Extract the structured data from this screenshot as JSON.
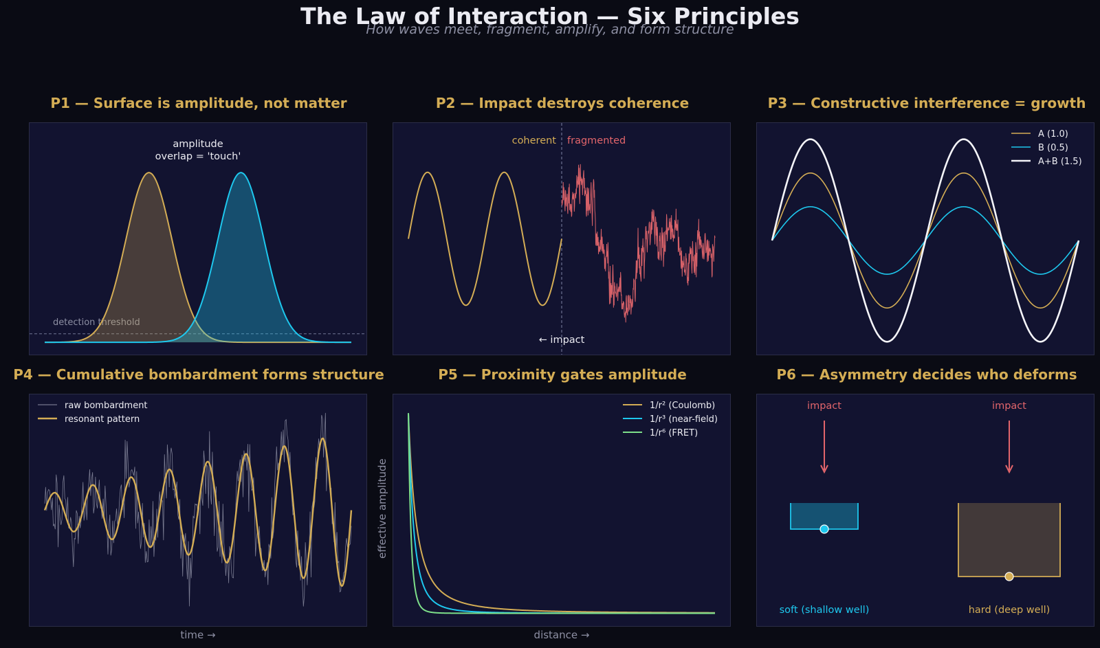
{
  "figure": {
    "title": "The Law of Interaction — Six Principles",
    "subtitle": "How waves meet, fragment, amplify, and form structure"
  },
  "colors": {
    "background": "#0a0b14",
    "panel": "#121330",
    "gold": "#d4ad55",
    "cyan": "#1ec8ee",
    "red": "#e2656b",
    "green": "#7ee08a",
    "white": "#f4f4f8",
    "gray": "#8d8fa3"
  },
  "chart_data": [
    {
      "id": "p1",
      "type": "area",
      "title": "P1 — Surface is amplitude, not matter",
      "x_range": [
        0,
        10
      ],
      "ylim": [
        -0.04,
        1.26
      ],
      "series": [
        {
          "shape": "gaussian",
          "center": 3.4,
          "sigma": 0.75,
          "amplitude": 1.0,
          "color": "#d4ad55"
        },
        {
          "shape": "gaussian",
          "center": 6.4,
          "sigma": 0.75,
          "amplitude": 1.0,
          "color": "#1ec8ee"
        }
      ],
      "threshold": {
        "value": 0.05,
        "label": "detection threshold"
      },
      "annotation": {
        "lines": [
          "amplitude",
          "overlap = 'touch'"
        ],
        "x": 5.0,
        "y": 1.14
      }
    },
    {
      "id": "p2",
      "type": "line",
      "title": "P2 — Impact destroys coherence",
      "x_range": [
        0,
        10
      ],
      "ylim": [
        -1.7,
        1.7
      ],
      "impact_x": 5.0,
      "coherent": {
        "shape": "sine",
        "amplitude": 1.0,
        "cycles": 2,
        "color": "#d4ad55",
        "label": "coherent"
      },
      "fragmented": {
        "shape": "noisy",
        "color": "#e2656b",
        "label": "fragmented"
      },
      "impact_label": "← impact"
    },
    {
      "id": "p3",
      "type": "line",
      "title": "P3 — Constructive interference = growth",
      "x_range": [
        0,
        12.566
      ],
      "ylim": [
        -1.65,
        1.7
      ],
      "series": [
        {
          "name": "A (1.0)",
          "amplitude": 1.0,
          "color": "#d4ad55",
          "width": 1.6
        },
        {
          "name": "B (0.5)",
          "amplitude": 0.5,
          "color": "#1ec8ee",
          "width": 1.6
        },
        {
          "name": "A+B (1.5)",
          "amplitude": 1.5,
          "color": "#f4f4f8",
          "width": 2.6
        }
      ],
      "legend": "top-right"
    },
    {
      "id": "p4",
      "type": "line",
      "title": "P4 — Cumulative bombardment forms structure",
      "xlabel": "time →",
      "x_range": [
        0,
        20
      ],
      "ylim": [
        -1.6,
        1.6
      ],
      "series": [
        {
          "name": "raw bombardment",
          "color": "#8d8fa3",
          "width": 0.8
        },
        {
          "name": "resonant pattern",
          "color": "#d4ad55",
          "width": 2.4
        }
      ],
      "legend": "top-left"
    },
    {
      "id": "p5",
      "type": "line",
      "title": "P5 — Proximity gates amplitude",
      "xlabel": "distance →",
      "ylabel": "effective amplitude",
      "x_range": [
        0.5,
        10
      ],
      "ylim": [
        -0.05,
        1.08
      ],
      "series": [
        {
          "name": "1/r² (Coulomb)",
          "power": 2,
          "color": "#d4ad55"
        },
        {
          "name": "1/r³ (near-field)",
          "power": 3,
          "color": "#1ec8ee"
        },
        {
          "name": "1/r⁶ (FRET)",
          "power": 6,
          "color": "#7ee08a"
        }
      ],
      "legend": "top-right"
    },
    {
      "id": "p6",
      "type": "diagram",
      "title": "P6 — Asymmetry decides who deforms",
      "items": [
        {
          "label": "soft (shallow well)",
          "impact_label": "impact",
          "color": "#1ec8ee"
        },
        {
          "label": "hard (deep well)",
          "impact_label": "impact",
          "color": "#d4ad55"
        }
      ]
    }
  ]
}
